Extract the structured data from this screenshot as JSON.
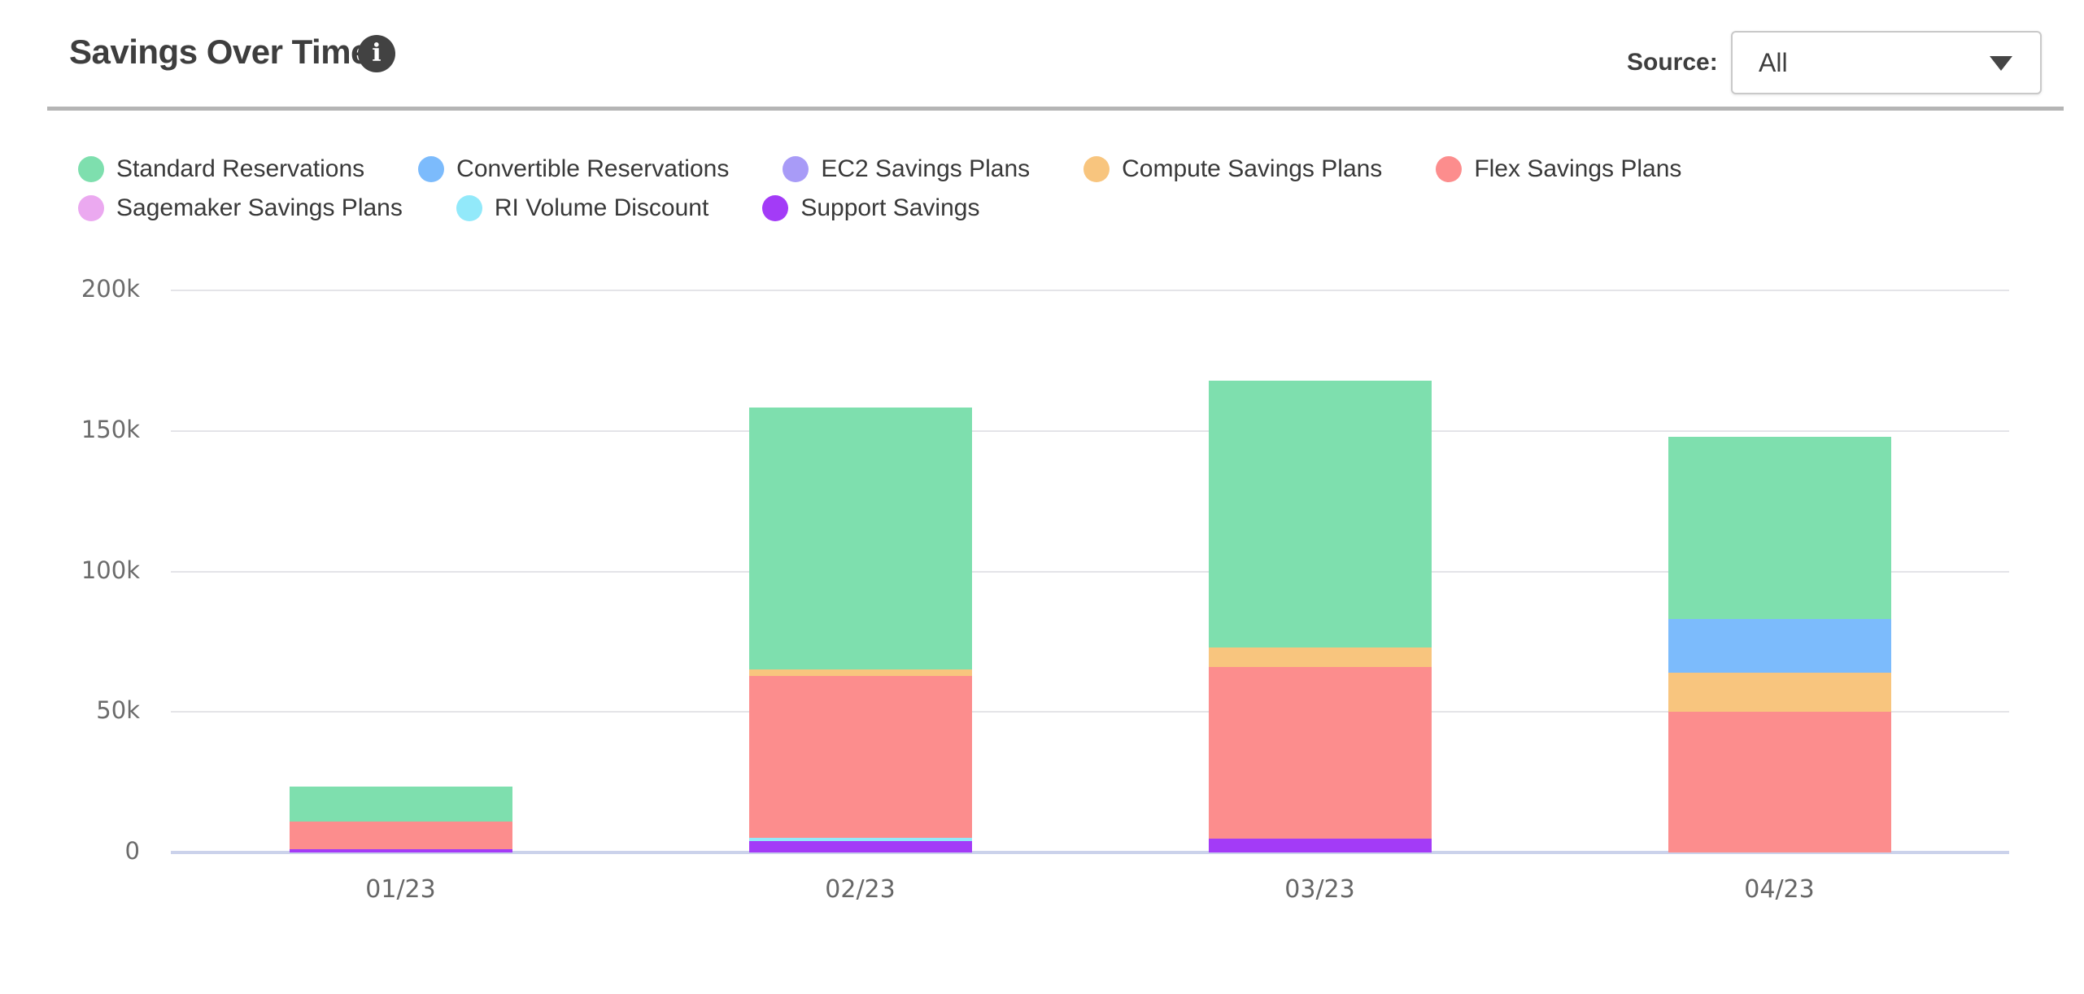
{
  "header": {
    "title": "Savings Over Time",
    "info_glyph": "i",
    "source_label": "Source:",
    "source_value": "All"
  },
  "colors": {
    "Standard Reservations": "#7EDFAE",
    "Convertible Reservations": "#7CBBFC",
    "EC2 Savings Plans": "#A89BF7",
    "Compute Savings Plans": "#F8C57E",
    "Flex Savings Plans": "#FC8D8D",
    "Sagemaker Savings Plans": "#EBA9F0",
    "RI Volume Discount": "#92E9FA",
    "Support Savings": "#A33BF7"
  },
  "legend": {
    "rows": [
      [
        "Standard Reservations",
        "Convertible Reservations",
        "EC2 Savings Plans",
        "Compute Savings Plans",
        "Flex Savings Plans"
      ],
      [
        "Sagemaker Savings Plans",
        "RI Volume Discount",
        "Support Savings"
      ]
    ]
  },
  "chart_data": {
    "type": "bar",
    "stacked": true,
    "title": "Savings Over Time",
    "categories": [
      "01/23",
      "02/23",
      "03/23",
      "04/23"
    ],
    "values_unit": "thousands",
    "ylim": [
      0,
      200
    ],
    "y_ticks": [
      {
        "value": 200,
        "label": "200k"
      },
      {
        "value": 150,
        "label": "150k"
      },
      {
        "value": 100,
        "label": "100k"
      },
      {
        "value": 50,
        "label": "50k"
      },
      {
        "value": 0,
        "label": "0"
      }
    ],
    "grid": true,
    "legend_position": "top",
    "stack_order": [
      "Support Savings",
      "RI Volume Discount",
      "Sagemaker Savings Plans",
      "Flex Savings Plans",
      "Compute Savings Plans",
      "EC2 Savings Plans",
      "Convertible Reservations",
      "Standard Reservations"
    ],
    "series": [
      {
        "name": "Standard Reservations",
        "values": [
          12.5,
          93,
          95,
          65
        ]
      },
      {
        "name": "Convertible Reservations",
        "values": [
          0,
          0,
          0,
          19
        ]
      },
      {
        "name": "EC2 Savings Plans",
        "values": [
          0,
          0,
          0,
          0
        ]
      },
      {
        "name": "Compute Savings Plans",
        "values": [
          0,
          2.5,
          7,
          14
        ]
      },
      {
        "name": "Flex Savings Plans",
        "values": [
          9.8,
          57.5,
          61,
          50
        ]
      },
      {
        "name": "Sagemaker Savings Plans",
        "values": [
          0,
          0,
          0,
          0
        ]
      },
      {
        "name": "RI Volume Discount",
        "values": [
          0,
          1.2,
          0,
          0
        ]
      },
      {
        "name": "Support Savings",
        "values": [
          1.2,
          4,
          5,
          0
        ]
      }
    ]
  }
}
